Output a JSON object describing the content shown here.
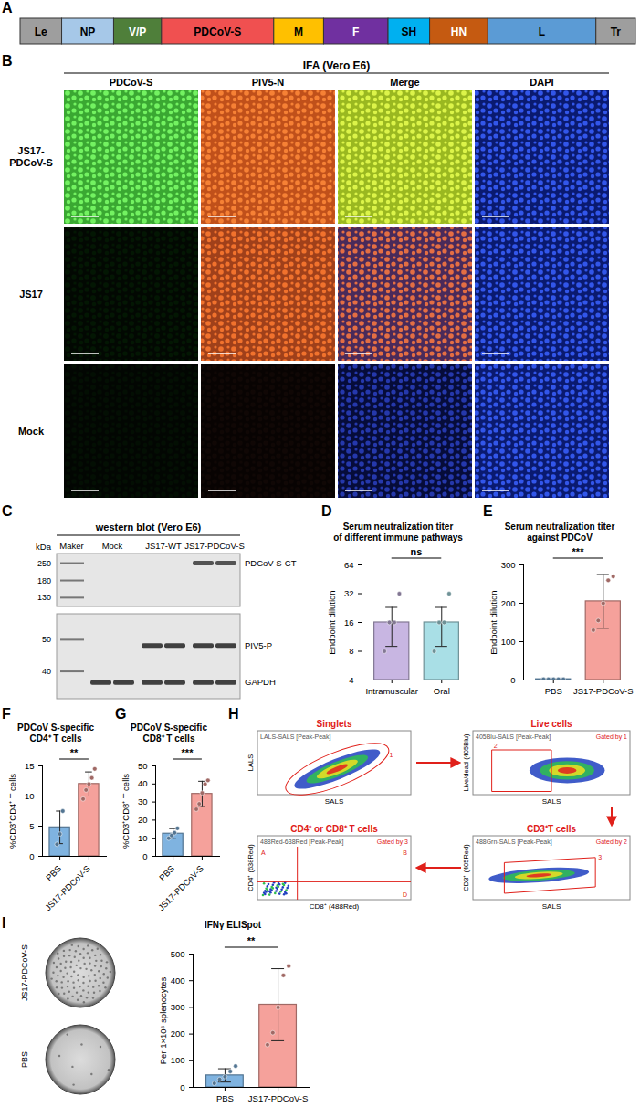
{
  "genome_map": {
    "letter": "A",
    "segments": [
      {
        "label": "Le",
        "color": "#9e9e9e"
      },
      {
        "label": "NP",
        "color": "#a6c8e8"
      },
      {
        "label": "V/P",
        "color": "#4f7f3a"
      },
      {
        "label": "PDCoV-S",
        "color": "#f05050"
      },
      {
        "label": "M",
        "color": "#ffc000"
      },
      {
        "label": "F",
        "color": "#7030a0"
      },
      {
        "label": "SH",
        "color": "#00b0f0"
      },
      {
        "label": "HN",
        "color": "#c55a11"
      },
      {
        "label": "L",
        "color": "#5b9bd5"
      },
      {
        "label": "Tr",
        "color": "#9e9e9e"
      }
    ]
  },
  "ifa": {
    "letter": "B",
    "title": "IFA (Vero E6)",
    "columns": [
      "PDCoV-S",
      "PIV5-N",
      "Merge",
      "DAPI"
    ],
    "rows": [
      "JS17-PDCoV-S",
      "JS17",
      "Mock"
    ]
  },
  "western_blot": {
    "letter": "C",
    "title": "western blot (Vero E6)",
    "unit": "kDa",
    "lanes": [
      "Maker",
      "Mock",
      "JS17-WT",
      "JS17-PDCoV-S"
    ],
    "upper_markers": [
      250,
      180,
      130
    ],
    "lower_markers": [
      50,
      40
    ],
    "bands": [
      "PDCoV-S-CT",
      "PIV5-P",
      "GAPDH"
    ]
  },
  "gating": {
    "letter": "H",
    "plots": [
      {
        "title": "Singlets",
        "header": "LALS-SALS [Peak-Peak]",
        "x_label": "SALS",
        "y_label": "LALS",
        "gate": "1"
      },
      {
        "title": "Live cells",
        "header": "405Blu-SALS [Peak-Peak]",
        "gated_by": "Gated by 1",
        "x_label": "SALS",
        "y_label": "Live/dead (405Blu)",
        "gate": "2"
      },
      {
        "title": "CD3⁺T cells",
        "header": "488Grn-SALS [Peak-Peak]",
        "gated_by": "Gated by 2",
        "x_label": "SALS",
        "y_label": "CD3⁺ (405Red)",
        "gate": "3"
      },
      {
        "title": "CD4⁺ or CD8⁺ T cells",
        "header": "488Red-638Red [Peak-Peak]",
        "gated_by": "Gated by 3",
        "x_label": "CD8⁺ (488Red)",
        "y_label": "CD4⁺ (638Red)",
        "quadrants": [
          "A",
          "B",
          "D"
        ]
      }
    ]
  },
  "chart_data": [
    {
      "panel": "D",
      "type": "bar",
      "title": "Serum neutralization titer of different immune pathways",
      "ylabel": "Endpoint dilution",
      "categories": [
        "Intramuscular",
        "Oral"
      ],
      "values": [
        16,
        16
      ],
      "errors": [
        7,
        7
      ],
      "points": [
        [
          8,
          16,
          16,
          32
        ],
        [
          8,
          16,
          16,
          32
        ]
      ],
      "colors": [
        "#c8b6e2",
        "#a9dfe6"
      ],
      "log": "y",
      "ylim": [
        4,
        64
      ],
      "yticks": [
        4,
        8,
        16,
        32,
        64
      ],
      "annotation": "ns"
    },
    {
      "panel": "E",
      "type": "bar",
      "title": "Serum neutralization titer against PDCoV",
      "ylabel": "Endpoint dilution",
      "categories": [
        "PBS",
        "JS17-PDCoV-S"
      ],
      "values": [
        2,
        205
      ],
      "errors": [
        0,
        70
      ],
      "points": [
        [
          2,
          2,
          2,
          2,
          2
        ],
        [
          130,
          155,
          200,
          260,
          270
        ]
      ],
      "colors": [
        "#7fb3e0",
        "#f5a19b"
      ],
      "ylim": [
        0,
        300
      ],
      "yticks": [
        0,
        100,
        200,
        300
      ],
      "annotation": "***"
    },
    {
      "panel": "F",
      "type": "bar",
      "title": "PDCoV S-specific CD4⁺ T cells",
      "ylabel": "%CD3⁺CD4⁺ T cells",
      "categories": [
        "PBS",
        "JS17-PDCoV-S"
      ],
      "values": [
        4.8,
        12
      ],
      "errors": [
        2.7,
        2
      ],
      "points": [
        [
          2,
          3.7,
          7.5
        ],
        [
          9.5,
          11,
          12,
          13,
          14.5
        ]
      ],
      "colors": [
        "#7fb3e0",
        "#f5a19b"
      ],
      "ylim": [
        0,
        15
      ],
      "yticks": [
        0,
        5,
        10,
        15
      ],
      "annotation": "**"
    },
    {
      "panel": "G",
      "type": "bar",
      "title": "PDCoV S-specific CD8⁺ T cells",
      "ylabel": "%CD3⁺CD8⁺ T cells",
      "categories": [
        "PBS",
        "JS17-PDCoV-S"
      ],
      "values": [
        12.5,
        34.5
      ],
      "errors": [
        2.8,
        7
      ],
      "points": [
        [
          10,
          11.5,
          13,
          15.5
        ],
        [
          26,
          29,
          35,
          40,
          42
        ]
      ],
      "colors": [
        "#7fb3e0",
        "#f5a19b"
      ],
      "ylim": [
        0,
        50
      ],
      "yticks": [
        0,
        10,
        20,
        30,
        40,
        50
      ],
      "annotation": "***"
    },
    {
      "panel": "I",
      "type": "bar",
      "title": "IFNγ ELISpot",
      "ylabel": "Per 1×10⁶ splenocytes",
      "categories": [
        "PBS",
        "JS17-PDCoV-S"
      ],
      "values": [
        45,
        310
      ],
      "errors": [
        25,
        135
      ],
      "points": [
        [
          15,
          30,
          40,
          60,
          80
        ],
        [
          160,
          205,
          300,
          420,
          455
        ]
      ],
      "colors": [
        "#7fb3e0",
        "#f5a19b"
      ],
      "ylim": [
        0,
        500
      ],
      "yticks": [
        0,
        100,
        200,
        300,
        400,
        500
      ],
      "annotation": "**",
      "well_labels": [
        "JS17-PDCoV-S",
        "PBS"
      ]
    }
  ]
}
